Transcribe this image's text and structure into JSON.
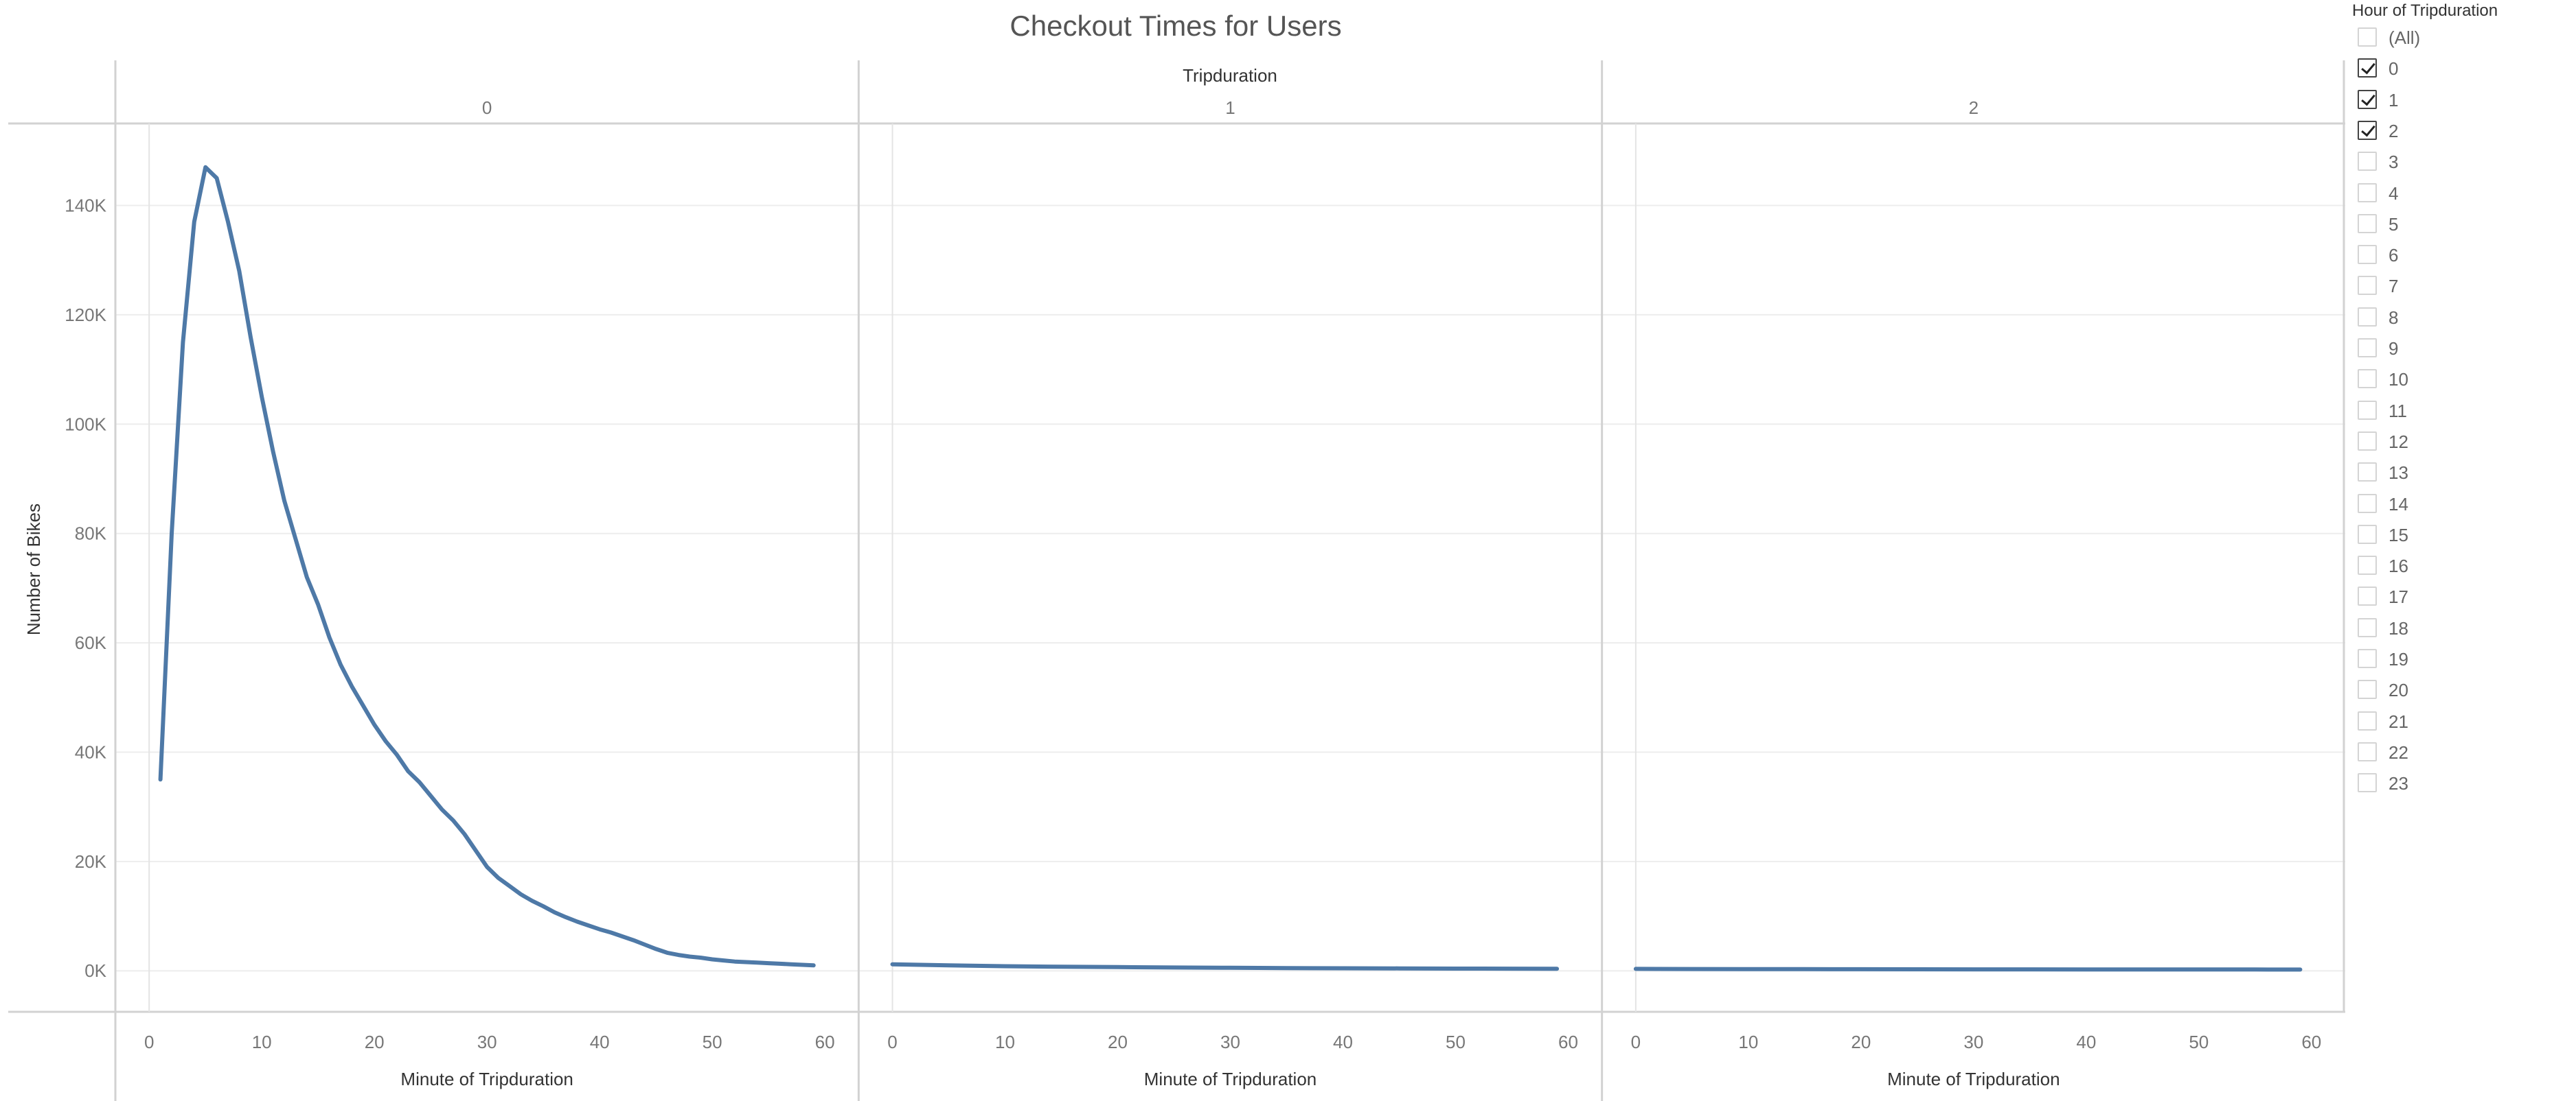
{
  "chart_data": {
    "type": "line",
    "title": "Checkout Times for Users",
    "column_header": "Tripduration",
    "xlabel": "Minute of Tripduration",
    "ylabel": "Number of Bikes",
    "ylim": [
      -7500,
      155000
    ],
    "xlim": [
      -3,
      63
    ],
    "y_ticks": [
      0,
      20000,
      40000,
      60000,
      80000,
      100000,
      120000,
      140000
    ],
    "y_tick_labels": [
      "0K",
      "20K",
      "40K",
      "60K",
      "80K",
      "100K",
      "120K",
      "140K"
    ],
    "x_ticks": [
      0,
      10,
      20,
      30,
      40,
      50,
      60
    ],
    "x_tick_labels": [
      "0",
      "10",
      "20",
      "30",
      "40",
      "50",
      "60"
    ],
    "grid": true,
    "line_color": "#4e79a7",
    "panels": [
      {
        "label": "0",
        "x": [
          1,
          2,
          3,
          4,
          5,
          6,
          7,
          8,
          9,
          10,
          11,
          12,
          13,
          14,
          15,
          16,
          17,
          18,
          19,
          20,
          21,
          22,
          23,
          24,
          25,
          26,
          27,
          28,
          29,
          30,
          31,
          32,
          33,
          34,
          35,
          36,
          37,
          38,
          39,
          40,
          41,
          42,
          43,
          44,
          45,
          46,
          47,
          48,
          49,
          50,
          51,
          52,
          53,
          54,
          55,
          56,
          57,
          58,
          59
        ],
        "y": [
          35000,
          80000,
          115000,
          137000,
          147000,
          145000,
          137000,
          128000,
          116000,
          105000,
          95000,
          86000,
          79000,
          72000,
          67000,
          61000,
          56000,
          52000,
          48500,
          45000,
          42000,
          39500,
          36500,
          34500,
          32000,
          29500,
          27500,
          25000,
          22000,
          19000,
          17000,
          15500,
          14000,
          12800,
          11800,
          10700,
          9800,
          9000,
          8300,
          7600,
          7000,
          6300,
          5600,
          4800,
          4000,
          3300,
          2900,
          2600,
          2400,
          2100,
          1900,
          1700,
          1600,
          1500,
          1400,
          1300,
          1200,
          1100,
          1000
        ]
      },
      {
        "label": "1",
        "x": [
          0,
          5,
          10,
          15,
          20,
          25,
          30,
          35,
          40,
          45,
          50,
          55,
          59
        ],
        "y": [
          1200,
          1000,
          850,
          750,
          680,
          610,
          560,
          510,
          470,
          440,
          410,
          390,
          370
        ]
      },
      {
        "label": "2",
        "x": [
          0,
          5,
          10,
          15,
          20,
          25,
          30,
          35,
          40,
          45,
          50,
          55,
          59
        ],
        "y": [
          350,
          330,
          310,
          300,
          290,
          280,
          270,
          265,
          260,
          250,
          245,
          240,
          235
        ]
      }
    ]
  },
  "filter": {
    "title": "Hour of Tripduration",
    "items": [
      {
        "label": "(All)",
        "checked": false
      },
      {
        "label": "0",
        "checked": true
      },
      {
        "label": "1",
        "checked": true
      },
      {
        "label": "2",
        "checked": true
      },
      {
        "label": "3",
        "checked": false
      },
      {
        "label": "4",
        "checked": false
      },
      {
        "label": "5",
        "checked": false
      },
      {
        "label": "6",
        "checked": false
      },
      {
        "label": "7",
        "checked": false
      },
      {
        "label": "8",
        "checked": false
      },
      {
        "label": "9",
        "checked": false
      },
      {
        "label": "10",
        "checked": false
      },
      {
        "label": "11",
        "checked": false
      },
      {
        "label": "12",
        "checked": false
      },
      {
        "label": "13",
        "checked": false
      },
      {
        "label": "14",
        "checked": false
      },
      {
        "label": "15",
        "checked": false
      },
      {
        "label": "16",
        "checked": false
      },
      {
        "label": "17",
        "checked": false
      },
      {
        "label": "18",
        "checked": false
      },
      {
        "label": "19",
        "checked": false
      },
      {
        "label": "20",
        "checked": false
      },
      {
        "label": "21",
        "checked": false
      },
      {
        "label": "22",
        "checked": false
      },
      {
        "label": "23",
        "checked": false
      }
    ]
  }
}
